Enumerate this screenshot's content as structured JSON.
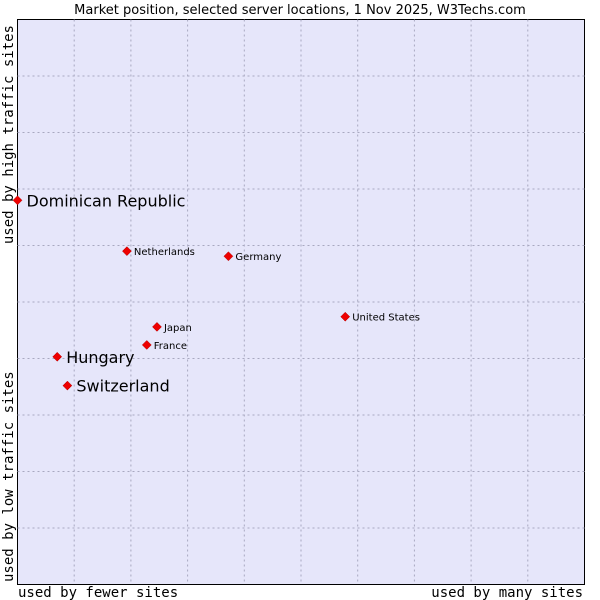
{
  "chart_data": {
    "type": "scatter",
    "title": "Market position, selected server locations, 1 Nov 2025, W3Techs.com",
    "xlabel_left": "used by fewer sites",
    "xlabel_right": "used by many sites",
    "ylabel_top": "used by high traffic sites",
    "ylabel_bottom": "used by low traffic sites",
    "xlim": [
      0,
      100
    ],
    "ylim": [
      0,
      100
    ],
    "grid": true,
    "point_color": "#ee0000",
    "plot_background": "#e6e6fa",
    "series": [
      {
        "name": "server locations",
        "points": [
          {
            "label": "Dominican Republic",
            "x": 0.0,
            "y": 68.0,
            "emphasis": "large"
          },
          {
            "label": "Netherlands",
            "x": 19.3,
            "y": 59.0,
            "emphasis": "small"
          },
          {
            "label": "Germany",
            "x": 37.2,
            "y": 58.1,
            "emphasis": "small"
          },
          {
            "label": "United States",
            "x": 57.8,
            "y": 47.4,
            "emphasis": "small"
          },
          {
            "label": "Japan",
            "x": 24.6,
            "y": 45.6,
            "emphasis": "small"
          },
          {
            "label": "France",
            "x": 22.8,
            "y": 42.4,
            "emphasis": "small"
          },
          {
            "label": "Hungary",
            "x": 7.0,
            "y": 40.3,
            "emphasis": "large"
          },
          {
            "label": "Switzerland",
            "x": 8.8,
            "y": 35.2,
            "emphasis": "large"
          }
        ]
      }
    ]
  }
}
